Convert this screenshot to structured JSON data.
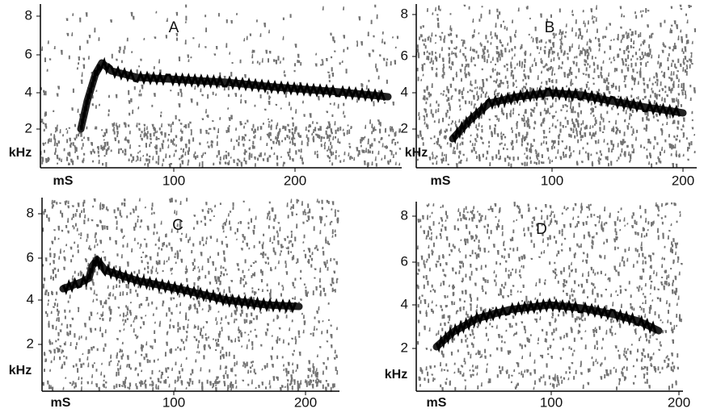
{
  "panels": [
    {
      "label": "A",
      "y_axis_label": "kHz",
      "x_axis_label": "mS",
      "yticks": [
        "8",
        "6",
        "4",
        "2"
      ],
      "xticks": [
        "100",
        "200"
      ]
    },
    {
      "label": "B",
      "y_axis_label": "kHz",
      "x_axis_label": "mS",
      "yticks": [
        "8",
        "6",
        "4",
        "2"
      ],
      "xticks": [
        "100",
        "200"
      ]
    },
    {
      "label": "C",
      "y_axis_label": "kHz",
      "x_axis_label": "mS",
      "yticks": [
        "8",
        "6",
        "4",
        "2"
      ],
      "xticks": [
        "100",
        "200"
      ]
    },
    {
      "label": "D",
      "y_axis_label": "kHz",
      "x_axis_label": "mS",
      "yticks": [
        "8",
        "6",
        "4",
        "2"
      ],
      "xticks": [
        "100",
        "200"
      ]
    }
  ]
}
